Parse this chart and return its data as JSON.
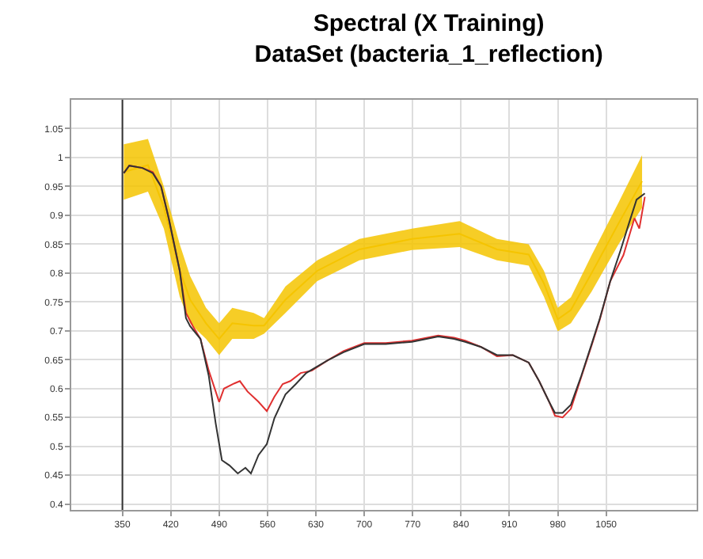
{
  "chart_data": {
    "type": "line",
    "title": "Spectral (X Training)\nDataSet (bacteria_1_reflection)",
    "xlim": [
      276,
      1181
    ],
    "xticks": [
      350,
      420,
      490,
      560,
      630,
      700,
      770,
      840,
      910,
      980,
      1050
    ],
    "ylim": [
      0.39,
      1.1
    ],
    "yticks": [
      0.4,
      0.45,
      0.5,
      0.55,
      0.6,
      0.65,
      0.7,
      0.75,
      0.8,
      0.85,
      0.9,
      0.95,
      1,
      1.05
    ],
    "grid": true,
    "marker": "none",
    "line_style": "solid",
    "ref_lines": [
      {
        "axis": "x",
        "value": 350,
        "color": "#333333"
      }
    ],
    "series": [
      {
        "color": "#f5c400",
        "x": [
          352,
          387,
          410,
          433,
          448,
          471,
          490,
          509,
          540,
          555,
          586,
          632,
          693,
          769,
          838,
          892,
          938,
          960,
          980,
          999,
          1029,
          1068,
          1102
        ],
        "values": [
          0.975,
          0.987,
          0.914,
          0.805,
          0.754,
          0.713,
          0.686,
          0.713,
          0.709,
          0.709,
          0.754,
          0.804,
          0.841,
          0.859,
          0.868,
          0.841,
          0.832,
          0.782,
          0.72,
          0.736,
          0.8,
          0.886,
          0.959
        ],
        "lower": [
          0.927,
          0.941,
          0.877,
          0.759,
          0.713,
          0.686,
          0.658,
          0.686,
          0.686,
          0.695,
          0.731,
          0.786,
          0.822,
          0.84,
          0.845,
          0.822,
          0.813,
          0.759,
          0.699,
          0.713,
          0.768,
          0.85,
          0.913
        ],
        "upper": [
          1.023,
          1.032,
          0.95,
          0.85,
          0.795,
          0.74,
          0.713,
          0.74,
          0.731,
          0.722,
          0.777,
          0.822,
          0.859,
          0.877,
          0.89,
          0.859,
          0.85,
          0.804,
          0.74,
          0.758,
          0.831,
          0.922,
          1.004
        ]
      },
      {
        "color": "#e03030",
        "x": [
          352,
          360,
          379,
          394,
          406,
          417,
          433,
          442,
          452,
          463,
          475,
          485,
          490,
          497,
          512,
          520,
          531,
          547,
          559,
          570,
          582,
          593,
          608,
          624,
          647,
          670,
          700,
          731,
          769,
          807,
          830,
          846,
          869,
          892,
          915,
          938,
          953,
          968,
          976,
          987,
          999,
          1014,
          1029,
          1041,
          1056,
          1075,
          1091,
          1098,
          1106
        ],
        "values": [
          0.973,
          0.986,
          0.982,
          0.975,
          0.95,
          0.895,
          0.804,
          0.731,
          0.708,
          0.686,
          0.631,
          0.595,
          0.577,
          0.6,
          0.609,
          0.613,
          0.595,
          0.577,
          0.561,
          0.586,
          0.608,
          0.613,
          0.627,
          0.631,
          0.649,
          0.665,
          0.679,
          0.679,
          0.683,
          0.692,
          0.688,
          0.683,
          0.672,
          0.656,
          0.658,
          0.645,
          0.613,
          0.576,
          0.553,
          0.55,
          0.565,
          0.62,
          0.675,
          0.72,
          0.786,
          0.831,
          0.895,
          0.877,
          0.932
        ]
      },
      {
        "color": "#333333",
        "x": [
          352,
          360,
          379,
          394,
          406,
          417,
          433,
          442,
          448,
          463,
          475,
          485,
          494,
          505,
          517,
          528,
          536,
          547,
          559,
          570,
          586,
          601,
          616,
          647,
          670,
          700,
          731,
          769,
          807,
          830,
          846,
          869,
          892,
          915,
          938,
          953,
          968,
          976,
          987,
          999,
          1014,
          1029,
          1041,
          1056,
          1071,
          1083,
          1094,
          1106
        ],
        "values": [
          0.973,
          0.986,
          0.982,
          0.973,
          0.95,
          0.895,
          0.804,
          0.722,
          0.708,
          0.686,
          0.622,
          0.54,
          0.476,
          0.467,
          0.453,
          0.463,
          0.453,
          0.485,
          0.504,
          0.549,
          0.59,
          0.608,
          0.627,
          0.649,
          0.663,
          0.677,
          0.677,
          0.681,
          0.69,
          0.686,
          0.681,
          0.672,
          0.658,
          0.658,
          0.645,
          0.613,
          0.576,
          0.558,
          0.558,
          0.572,
          0.622,
          0.677,
          0.722,
          0.786,
          0.84,
          0.886,
          0.927,
          0.938
        ]
      }
    ]
  }
}
